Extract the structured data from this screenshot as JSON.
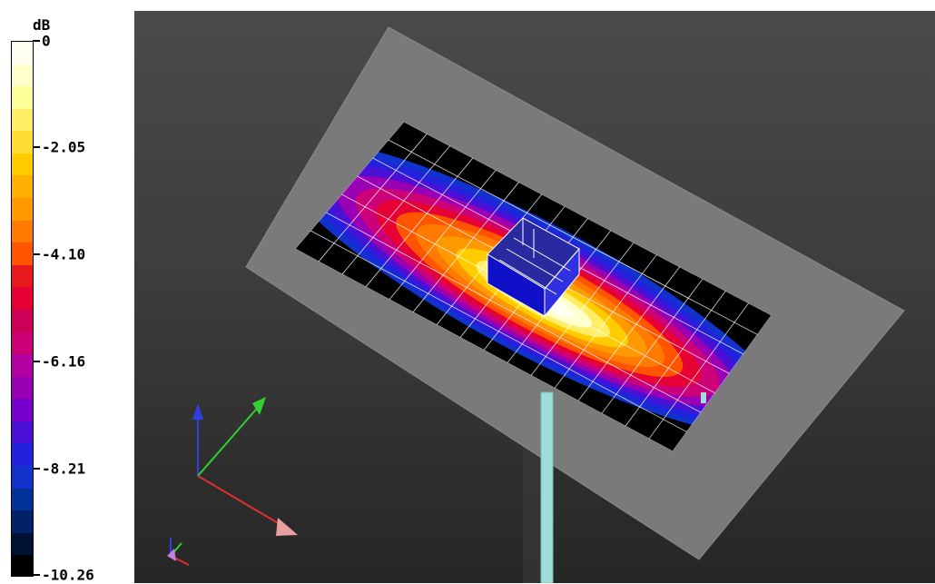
{
  "colorbar": {
    "unit": "dB",
    "ticks": [
      {
        "label": "0",
        "value": 0
      },
      {
        "label": "-2.05",
        "value": -2.05
      },
      {
        "label": "-4.10",
        "value": -4.1
      },
      {
        "label": "-6.16",
        "value": -6.16
      },
      {
        "label": "-8.21",
        "value": -8.21
      },
      {
        "label": "-10.26",
        "value": -10.26
      }
    ],
    "bands": [
      "#fffff0",
      "#ffffcc",
      "#ffff99",
      "#ffee66",
      "#ffdd33",
      "#ffcc00",
      "#ffb000",
      "#ff9900",
      "#ff7a00",
      "#ff5500",
      "#e61a1a",
      "#e60033",
      "#cc0055",
      "#cc0077",
      "#b300a0",
      "#9900b3",
      "#7700cc",
      "#4a10d6",
      "#2222dd",
      "#1133cc",
      "#003399",
      "#002266",
      "#001133",
      "#000000"
    ]
  },
  "scene": {
    "background_top": "#4a4a4a",
    "background_bottom": "#262626",
    "ground_plane_color": "#7a7a7a",
    "feed_post_color": "#9fdcdc",
    "axis_colors": {
      "x": "#e03030",
      "y": "#30d030",
      "z": "#3040e0"
    }
  }
}
